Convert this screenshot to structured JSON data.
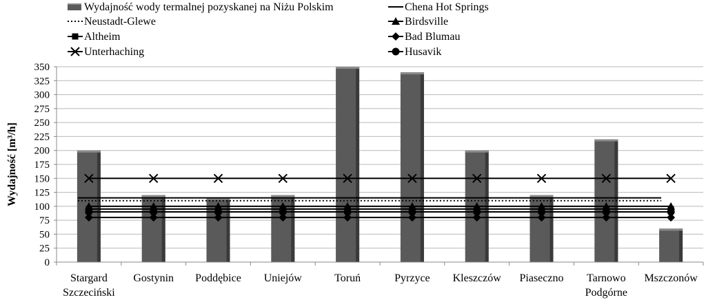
{
  "chart_data": {
    "type": "bar",
    "title": "",
    "xlabel": "",
    "ylabel": "Wydajność [m³/h]",
    "ylim": [
      0,
      350
    ],
    "ytick_step": 25,
    "grid": true,
    "legend_position": "top",
    "categories": [
      [
        "Stargard",
        "Szczeciński"
      ],
      [
        "Gostynin"
      ],
      [
        "Poddębice"
      ],
      [
        "Uniejów"
      ],
      [
        "Toruń"
      ],
      [
        "Pyrzyce"
      ],
      [
        "Kleszczów"
      ],
      [
        "Piaseczno"
      ],
      [
        "Tarnowo",
        "Podgórne"
      ],
      [
        "Mszczonów"
      ]
    ],
    "bar_series": {
      "name": "Wydajność wody termalnej pozyskanej na Niżu Polskim",
      "values": [
        200,
        120,
        115,
        120,
        360,
        340,
        200,
        120,
        220,
        60
      ],
      "color": "#5a5a5a"
    },
    "line_series": [
      {
        "name": "Chena Hot Springs",
        "value": 115,
        "style": "solid",
        "marker": "none"
      },
      {
        "name": "Neustadt-Glewe",
        "value": 110,
        "style": "dotted",
        "marker": "none"
      },
      {
        "name": "Birdsville",
        "value": 100,
        "style": "solid",
        "marker": "triangle"
      },
      {
        "name": "Altheim",
        "value": 95,
        "style": "solid",
        "marker": "square"
      },
      {
        "name": "Bad Blumau",
        "value": 80,
        "style": "solid",
        "marker": "diamond"
      },
      {
        "name": "Husavik",
        "value": 90,
        "style": "solid",
        "marker": "circle"
      },
      {
        "name": "Unterhaching",
        "value": 150,
        "style": "solid",
        "marker": "x"
      }
    ],
    "legend_layout": [
      [
        "bar",
        "Chena Hot Springs"
      ],
      [
        "Neustadt-Glewe",
        "Birdsville"
      ],
      [
        "Altheim",
        "Bad Blumau"
      ],
      [
        "Unterhaching",
        "Husavik"
      ]
    ]
  }
}
